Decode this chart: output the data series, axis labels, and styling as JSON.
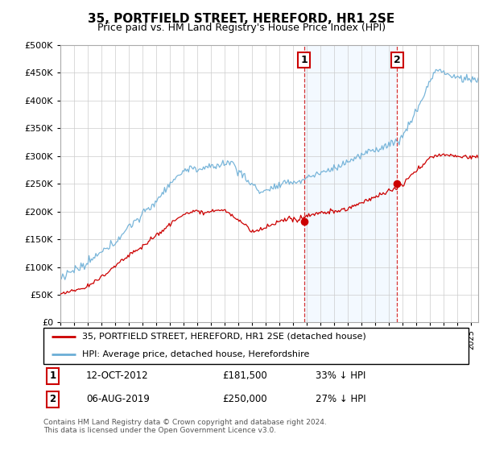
{
  "title": "35, PORTFIELD STREET, HEREFORD, HR1 2SE",
  "subtitle": "Price paid vs. HM Land Registry's House Price Index (HPI)",
  "legend_line1": "35, PORTFIELD STREET, HEREFORD, HR1 2SE (detached house)",
  "legend_line2": "HPI: Average price, detached house, Herefordshire",
  "annotation1_label": "1",
  "annotation1_date": "12-OCT-2012",
  "annotation1_price": "£181,500",
  "annotation1_hpi": "33% ↓ HPI",
  "annotation2_label": "2",
  "annotation2_date": "06-AUG-2019",
  "annotation2_price": "£250,000",
  "annotation2_hpi": "27% ↓ HPI",
  "footer": "Contains HM Land Registry data © Crown copyright and database right 2024.\nThis data is licensed under the Open Government Licence v3.0.",
  "hpi_color": "#6baed6",
  "price_color": "#cc0000",
  "marker_color": "#cc0000",
  "annotation_color": "#cc0000",
  "shaded_region_color": "#ddeeff",
  "ylim": [
    0,
    500000
  ],
  "yticks": [
    0,
    50000,
    100000,
    150000,
    200000,
    250000,
    300000,
    350000,
    400000,
    450000,
    500000
  ],
  "xlim_start": 1995.0,
  "xlim_end": 2025.5,
  "sale1_x": 2012.79,
  "sale1_y": 181500,
  "sale2_x": 2019.59,
  "sale2_y": 250000
}
